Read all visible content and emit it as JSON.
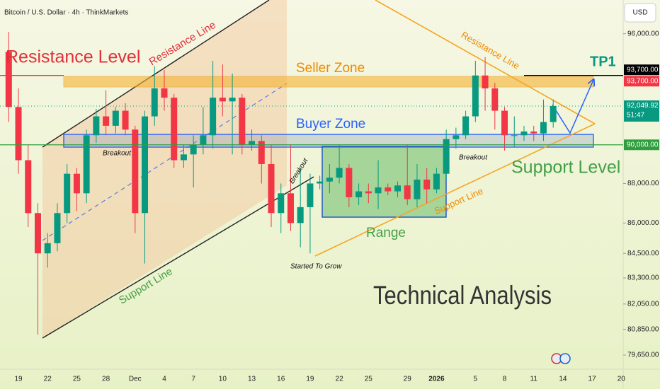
{
  "chart_data": {
    "type": "candlestick",
    "title": "Bitcoin / U.S. Dollar · 4h · ThinkMarkets",
    "currency": "USD",
    "categories": [
      null,
      "19",
      null,
      null,
      "22",
      null,
      null,
      "25",
      null,
      null,
      "28",
      null,
      null,
      "Dec",
      null,
      null,
      "4",
      null,
      null,
      "7",
      null,
      null,
      "10",
      null,
      null,
      "13",
      null,
      null,
      "16",
      null,
      null,
      "19",
      null,
      null,
      "22",
      null,
      null,
      "25",
      null,
      null,
      null,
      "29",
      null,
      null,
      "2026",
      null,
      null,
      null,
      "5",
      null,
      null,
      "8",
      null,
      null,
      "11",
      null,
      null,
      "14",
      null,
      null,
      "17",
      null,
      null,
      "20"
    ],
    "open": [
      95000,
      92000,
      89200,
      86500,
      84500,
      85000,
      86500,
      88500,
      87500,
      90500,
      91500,
      91000,
      91800,
      90800,
      86500,
      91500,
      93000,
      92500,
      89200,
      89500,
      90000,
      90500,
      92500,
      92300,
      92500,
      90000,
      90200,
      89000,
      86500,
      87500,
      86000,
      86800,
      88000,
      88100,
      88300,
      88800,
      87300,
      87600,
      87500,
      87800,
      87600,
      87900,
      87200,
      88200,
      87700,
      88500,
      90300,
      90500,
      91500,
      93700,
      93000,
      91800,
      90500,
      90500,
      90700,
      90600,
      91200,
      null,
      null,
      null,
      null,
      null,
      null,
      null
    ],
    "high": [
      96100,
      93000,
      90000,
      87000,
      85500,
      87000,
      89000,
      88800,
      90800,
      91900,
      92900,
      92000,
      92200,
      91000,
      91800,
      94200,
      94000,
      92700,
      90000,
      90500,
      92000,
      94500,
      94300,
      93800,
      92700,
      90800,
      90500,
      90000,
      88000,
      90000,
      88800,
      88500,
      88400,
      89000,
      90000,
      89000,
      88000,
      88000,
      89200,
      88000,
      88100,
      90000,
      89000,
      88800,
      88800,
      90800,
      90900,
      91800,
      94500,
      94700,
      93300,
      92000,
      91500,
      91000,
      91000,
      92400,
      92400,
      null,
      null,
      null,
      null,
      null,
      null,
      null
    ],
    "low": [
      91200,
      88500,
      85800,
      80600,
      83800,
      84600,
      86000,
      86600,
      87000,
      90100,
      90500,
      90600,
      90500,
      85500,
      84000,
      91000,
      91800,
      88800,
      88800,
      87800,
      89500,
      89800,
      91500,
      89500,
      89500,
      89700,
      88000,
      85800,
      85500,
      85600,
      84800,
      84500,
      87700,
      87500,
      88000,
      86800,
      86900,
      87000,
      86700,
      87400,
      87300,
      86900,
      86800,
      87000,
      87500,
      88200,
      89800,
      90300,
      91200,
      91800,
      90800,
      89700,
      89900,
      90200,
      90200,
      90200,
      90900,
      null,
      null,
      null,
      null,
      null,
      null,
      null
    ],
    "close": [
      92000,
      89200,
      86500,
      84500,
      85000,
      86500,
      88500,
      87500,
      90500,
      91500,
      91000,
      91800,
      90800,
      86500,
      91500,
      93000,
      92500,
      89200,
      89500,
      90000,
      90500,
      92500,
      92300,
      92500,
      90000,
      90200,
      89000,
      86500,
      87500,
      86000,
      86800,
      88000,
      88100,
      88300,
      88800,
      87300,
      87600,
      87500,
      87800,
      87600,
      87900,
      87200,
      88200,
      87700,
      88500,
      90300,
      90500,
      91500,
      93700,
      93000,
      91800,
      90500,
      90500,
      90700,
      90600,
      91200,
      92050,
      null,
      null,
      null,
      null,
      null,
      null,
      null
    ],
    "up_color": "#089981",
    "down_color": "#f23645",
    "log_scale": true,
    "ylim": [
      79000,
      97900
    ],
    "yticks": [
      {
        "value": 96000,
        "label": "96,000.00"
      },
      {
        "value": 88000,
        "label": "88,000.00"
      },
      {
        "value": 86000,
        "label": "86,000.00"
      },
      {
        "value": 84500,
        "label": "84,500.00"
      },
      {
        "value": 83300,
        "label": "83,300.00"
      },
      {
        "value": 82050,
        "label": "82,050.00"
      },
      {
        "value": 80850,
        "label": "80,850.00"
      },
      {
        "value": 79650,
        "label": "79,650.00"
      }
    ],
    "price_labels": [
      {
        "value": 93700,
        "label": "93,700.00",
        "color": "#000000"
      },
      {
        "value": 93700,
        "label": "93,700.00",
        "color": "#f23645"
      },
      {
        "value": 92049.92,
        "label": "92,049.92",
        "sublabel": "51:47",
        "color": "#089981"
      },
      {
        "value": 90000,
        "label": "90,000.00",
        "color": "#2e9e3e"
      }
    ],
    "annotations": [
      "Resistance Level",
      "Resistance Line",
      "Seller Zone",
      "Buyer Zone",
      "TP1",
      "Resistance Line",
      "Breakout",
      "Breakout",
      "Breakout",
      "Support Level",
      "Support Line",
      "Support Line",
      "Range",
      "Started To Grow",
      "Technical Analysis"
    ]
  }
}
